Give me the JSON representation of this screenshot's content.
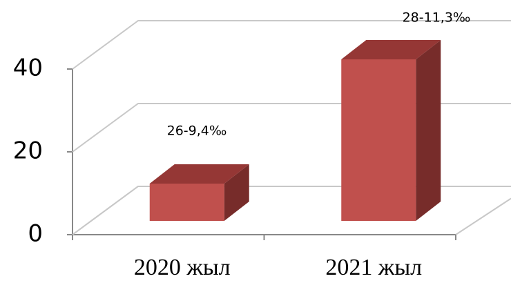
{
  "chart_data": {
    "type": "bar3d",
    "categories": [
      "2020 жыл",
      "2021 жыл"
    ],
    "values": [
      9,
      39
    ],
    "annotations": [
      "26-9,4‰",
      "28-11,3‰"
    ],
    "color": "#c0504d",
    "ylim": [
      0,
      40
    ],
    "yticks": [
      0,
      20,
      40
    ],
    "grid": true
  }
}
